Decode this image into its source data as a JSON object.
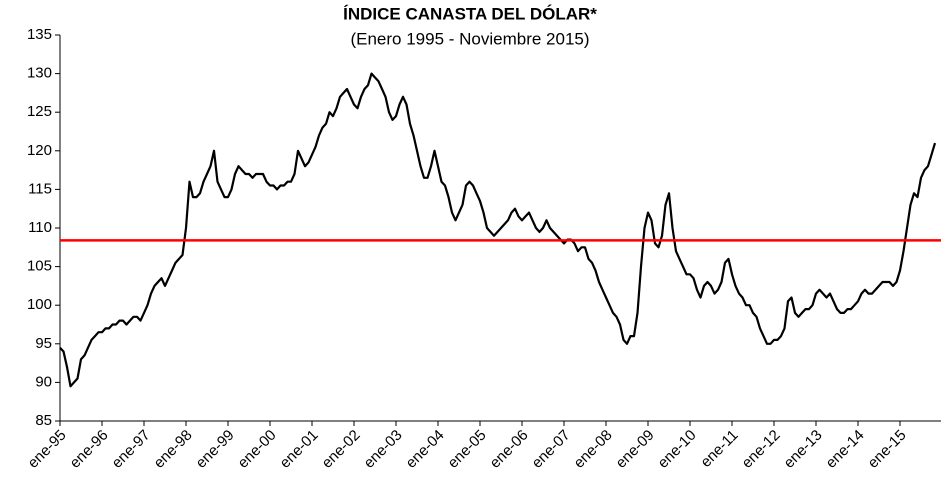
{
  "chart_data": {
    "type": "line",
    "title": "ÍNDICE CANASTA DEL DÓLAR*",
    "subtitle": "(Enero 1995 -  Noviembre 2015)",
    "categories": [
      "ene-95",
      null,
      null,
      null,
      null,
      null,
      null,
      null,
      null,
      null,
      null,
      null,
      "ene-96",
      null,
      null,
      null,
      null,
      null,
      null,
      null,
      null,
      null,
      null,
      null,
      "ene-97",
      null,
      null,
      null,
      null,
      null,
      null,
      null,
      null,
      null,
      null,
      null,
      "ene-98",
      null,
      null,
      null,
      null,
      null,
      null,
      null,
      null,
      null,
      null,
      null,
      "ene-99",
      null,
      null,
      null,
      null,
      null,
      null,
      null,
      null,
      null,
      null,
      null,
      "ene-00",
      null,
      null,
      null,
      null,
      null,
      null,
      null,
      null,
      null,
      null,
      null,
      "ene-01",
      null,
      null,
      null,
      null,
      null,
      null,
      null,
      null,
      null,
      null,
      null,
      "ene-02",
      null,
      null,
      null,
      null,
      null,
      null,
      null,
      null,
      null,
      null,
      null,
      "ene-03",
      null,
      null,
      null,
      null,
      null,
      null,
      null,
      null,
      null,
      null,
      null,
      "ene-04",
      null,
      null,
      null,
      null,
      null,
      null,
      null,
      null,
      null,
      null,
      null,
      "ene-05",
      null,
      null,
      null,
      null,
      null,
      null,
      null,
      null,
      null,
      null,
      null,
      "ene-06",
      null,
      null,
      null,
      null,
      null,
      null,
      null,
      null,
      null,
      null,
      null,
      "ene-07",
      null,
      null,
      null,
      null,
      null,
      null,
      null,
      null,
      null,
      null,
      null,
      "ene-08",
      null,
      null,
      null,
      null,
      null,
      null,
      null,
      null,
      null,
      null,
      null,
      "ene-09",
      null,
      null,
      null,
      null,
      null,
      null,
      null,
      null,
      null,
      null,
      null,
      "ene-10",
      null,
      null,
      null,
      null,
      null,
      null,
      null,
      null,
      null,
      null,
      null,
      "ene-11",
      null,
      null,
      null,
      null,
      null,
      null,
      null,
      null,
      null,
      null,
      null,
      "ene-12",
      null,
      null,
      null,
      null,
      null,
      null,
      null,
      null,
      null,
      null,
      null,
      "ene-13",
      null,
      null,
      null,
      null,
      null,
      null,
      null,
      null,
      null,
      null,
      null,
      "ene-14",
      null,
      null,
      null,
      null,
      null,
      null,
      null,
      null,
      null,
      null,
      null,
      "ene-15",
      null,
      null,
      null,
      null,
      null,
      null,
      null,
      null,
      null,
      null
    ],
    "series": [
      {
        "color": "#000000",
        "values": [
          94.5,
          94,
          92,
          89.5,
          90,
          90.5,
          93,
          93.5,
          94.5,
          95.5,
          96,
          96.5,
          96.5,
          97,
          97,
          97.5,
          97.5,
          98,
          98,
          97.5,
          98,
          98.5,
          98.5,
          98,
          99,
          100,
          101.5,
          102.5,
          103,
          103.5,
          102.5,
          103.5,
          104.5,
          105.5,
          106,
          106.5,
          110,
          116,
          114,
          114,
          114.5,
          116,
          117,
          118,
          120,
          116,
          115,
          114,
          114,
          115,
          117,
          118,
          117.5,
          117,
          117,
          116.5,
          117,
          117,
          117,
          116,
          115.5,
          115.5,
          115,
          115.5,
          115.5,
          116,
          116,
          117,
          120,
          119,
          118,
          118.5,
          119.5,
          120.5,
          122,
          123,
          123.5,
          125,
          124.5,
          125.5,
          127,
          127.5,
          128,
          127,
          126,
          125.5,
          127,
          128,
          128.5,
          130,
          129.5,
          129,
          128,
          127,
          125,
          124,
          124.5,
          126,
          127,
          126,
          123.5,
          122,
          120,
          118,
          116.5,
          116.5,
          118,
          120,
          118,
          116,
          115.5,
          114,
          112,
          111,
          112,
          113,
          115.5,
          116,
          115.5,
          114.5,
          113.5,
          112,
          110,
          109.5,
          109,
          109.5,
          110,
          110.5,
          111,
          112,
          112.5,
          111.5,
          111,
          111.5,
          112,
          111,
          110,
          109.5,
          110,
          111,
          110,
          109.5,
          109,
          108.5,
          108,
          108.5,
          108.5,
          108,
          107,
          107.5,
          107.5,
          106,
          105.5,
          104.5,
          103,
          102,
          101,
          100,
          99,
          98.5,
          97.5,
          95.5,
          95,
          96,
          96,
          99,
          105,
          110,
          112,
          111,
          108,
          107.5,
          109,
          113,
          114.5,
          110,
          107,
          106,
          105,
          104,
          104,
          103.5,
          102,
          101,
          102.5,
          103,
          102.5,
          101.5,
          102,
          103,
          105.5,
          106,
          104,
          102.5,
          101.5,
          101,
          100,
          100,
          99,
          98.5,
          97,
          96,
          95,
          95,
          95.5,
          95.5,
          96,
          97,
          100.5,
          101,
          99,
          98.5,
          99,
          99.5,
          99.5,
          100,
          101.5,
          102,
          101.5,
          101,
          101.5,
          100.5,
          99.5,
          99,
          99,
          99.5,
          99.5,
          100,
          100.5,
          101.5,
          102,
          101.5,
          101.5,
          102,
          102.5,
          103,
          103,
          103,
          102.5,
          103,
          104.5,
          107,
          110,
          113,
          114.5,
          114,
          116.5,
          117.5,
          118,
          119.5,
          121
        ]
      }
    ],
    "reference_line": {
      "value": 108.4,
      "color": "#ff0000"
    },
    "ylim": [
      85,
      135
    ],
    "yticks": [
      85,
      90,
      95,
      100,
      105,
      110,
      115,
      120,
      125,
      130,
      135
    ]
  }
}
